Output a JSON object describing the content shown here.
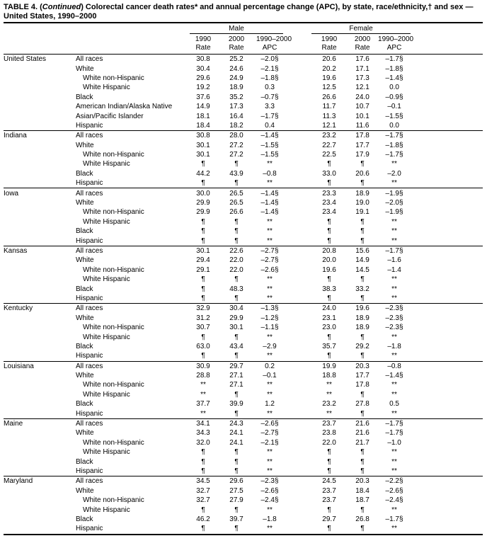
{
  "header": {
    "title": [
      "TABLE 4. (",
      "Continued",
      ") Colorectal cancer death rates* and annual percentage change (APC), by state, race/ethnicity,† and sex — United States, 1990–2000"
    ]
  },
  "table": {
    "sexes": [
      "Male",
      "Female"
    ],
    "columns": [
      [
        "1990",
        "Rate"
      ],
      [
        "2000",
        "Rate"
      ],
      [
        "1990–2000",
        "APC"
      ],
      [
        "1990",
        "Rate"
      ],
      [
        "2000",
        "Rate"
      ],
      [
        "1990–2000",
        "APC"
      ]
    ],
    "groups": [
      {
        "state": "United States",
        "rows": [
          [
            "All races",
            "30.8",
            "25.2",
            "–2.0§",
            "20.6",
            "17.6",
            "–1.7§"
          ],
          [
            "White",
            "30.4",
            "24.6",
            "–2.1§",
            "20.2",
            "17.1",
            "–1.8§"
          ],
          [
            "White non-Hispanic",
            "29.6",
            "24.9",
            "–1.8§",
            "19.6",
            "17.3",
            "–1.4§"
          ],
          [
            "White Hispanic",
            "19.2",
            "18.9",
            "0.3",
            "12.5",
            "12.1",
            "0.0"
          ],
          [
            "Black",
            "37.6",
            "35.2",
            "–0.7§",
            "26.6",
            "24.0",
            "–0.9§"
          ],
          [
            "American Indian/Alaska Native",
            "14.9",
            "17.3",
            "3.3",
            "11.7",
            "10.7",
            "–0.1"
          ],
          [
            "Asian/Pacific Islander",
            "18.1",
            "16.4",
            "–1.7§",
            "11.3",
            "10.1",
            "–1.5§"
          ],
          [
            "Hispanic",
            "18.4",
            "18.2",
            "0.4",
            "12.1",
            "11.6",
            "0.0"
          ]
        ]
      },
      {
        "state": "Indiana",
        "rows": [
          [
            "All races",
            "30.8",
            "28.0",
            "–1.4§",
            "23.2",
            "17.8",
            "–1.7§"
          ],
          [
            "White",
            "30.1",
            "27.2",
            "–1.5§",
            "22.7",
            "17.7",
            "–1.8§"
          ],
          [
            "White non-Hispanic",
            "30.1",
            "27.2",
            "–1.5§",
            "22.5",
            "17.9",
            "–1.7§"
          ],
          [
            "White Hispanic",
            "¶",
            "¶",
            "**",
            "¶",
            "¶",
            "**"
          ],
          [
            "Black",
            "44.2",
            "43.9",
            "–0.8",
            "33.0",
            "20.6",
            "–2.0"
          ],
          [
            "Hispanic",
            "¶",
            "¶",
            "**",
            "¶",
            "¶",
            "**"
          ]
        ]
      },
      {
        "state": "Iowa",
        "rows": [
          [
            "All races",
            "30.0",
            "26.5",
            "–1.4§",
            "23.3",
            "18.9",
            "–1.9§"
          ],
          [
            "White",
            "29.9",
            "26.5",
            "–1.4§",
            "23.4",
            "19.0",
            "–2.0§"
          ],
          [
            "White non-Hispanic",
            "29.9",
            "26.6",
            "–1.4§",
            "23.4",
            "19.1",
            "–1.9§"
          ],
          [
            "White Hispanic",
            "¶",
            "¶",
            "**",
            "¶",
            "¶",
            "**"
          ],
          [
            "Black",
            "¶",
            "¶",
            "**",
            "¶",
            "¶",
            "**"
          ],
          [
            "Hispanic",
            "¶",
            "¶",
            "**",
            "¶",
            "¶",
            "**"
          ]
        ]
      },
      {
        "state": "Kansas",
        "rows": [
          [
            "All races",
            "30.1",
            "22.6",
            "–2.7§",
            "20.8",
            "15.6",
            "–1.7§"
          ],
          [
            "White",
            "29.4",
            "22.0",
            "–2.7§",
            "20.0",
            "14.9",
            "–1.6"
          ],
          [
            "White non-Hispanic",
            "29.1",
            "22.0",
            "–2.6§",
            "19.6",
            "14.5",
            "–1.4"
          ],
          [
            "White Hispanic",
            "¶",
            "¶",
            "**",
            "¶",
            "¶",
            "**"
          ],
          [
            "Black",
            "¶",
            "48.3",
            "**",
            "38.3",
            "33.2",
            "**"
          ],
          [
            "Hispanic",
            "¶",
            "¶",
            "**",
            "¶",
            "¶",
            "**"
          ]
        ]
      },
      {
        "state": "Kentucky",
        "rows": [
          [
            "All races",
            "32.9",
            "30.4",
            "–1.3§",
            "24.0",
            "19.6",
            "–2.3§"
          ],
          [
            "White",
            "31.2",
            "29.9",
            "–1.2§",
            "23.1",
            "18.9",
            "–2.3§"
          ],
          [
            "White non-Hispanic",
            "30.7",
            "30.1",
            "–1.1§",
            "23.0",
            "18.9",
            "–2.3§"
          ],
          [
            "White Hispanic",
            "¶",
            "¶",
            "**",
            "¶",
            "¶",
            "**"
          ],
          [
            "Black",
            "63.0",
            "43.4",
            "–2.9",
            "35.7",
            "29.2",
            "–1.8"
          ],
          [
            "Hispanic",
            "¶",
            "¶",
            "**",
            "¶",
            "¶",
            "**"
          ]
        ]
      },
      {
        "state": "Louisiana",
        "rows": [
          [
            "All races",
            "30.9",
            "29.7",
            "0.2",
            "19.9",
            "20.3",
            "–0.8"
          ],
          [
            "White",
            "28.8",
            "27.1",
            "–0.1",
            "18.8",
            "17.7",
            "–1.4§"
          ],
          [
            "White non-Hispanic",
            "**",
            "27.1",
            "**",
            "**",
            "17.8",
            "**"
          ],
          [
            "White Hispanic",
            "**",
            "¶",
            "**",
            "**",
            "¶",
            "**"
          ],
          [
            "Black",
            "37.7",
            "39.9",
            "1.2",
            "23.2",
            "27.8",
            "0.5"
          ],
          [
            "Hispanic",
            "**",
            "¶",
            "**",
            "**",
            "¶",
            "**"
          ]
        ]
      },
      {
        "state": "Maine",
        "rows": [
          [
            "All races",
            "34.1",
            "24.3",
            "–2.6§",
            "23.7",
            "21.6",
            "–1.7§"
          ],
          [
            "White",
            "34.3",
            "24.1",
            "–2.7§",
            "23.8",
            "21.6",
            "–1.7§"
          ],
          [
            "White non-Hispanic",
            "32.0",
            "24.1",
            "–2.1§",
            "22.0",
            "21.7",
            "–1.0"
          ],
          [
            "White Hispanic",
            "¶",
            "¶",
            "**",
            "¶",
            "¶",
            "**"
          ],
          [
            "Black",
            "¶",
            "¶",
            "**",
            "¶",
            "¶",
            "**"
          ],
          [
            "Hispanic",
            "¶",
            "¶",
            "**",
            "¶",
            "¶",
            "**"
          ]
        ]
      },
      {
        "state": "Maryland",
        "rows": [
          [
            "All races",
            "34.5",
            "29.6",
            "–2.3§",
            "24.5",
            "20.3",
            "–2.2§"
          ],
          [
            "White",
            "32.7",
            "27.5",
            "–2.6§",
            "23.7",
            "18.4",
            "–2.6§"
          ],
          [
            "White non-Hispanic",
            "32.7",
            "27.9",
            "–2.4§",
            "23.7",
            "18.7",
            "–2.4§"
          ],
          [
            "White Hispanic",
            "¶",
            "¶",
            "**",
            "¶",
            "¶",
            "**"
          ],
          [
            "Black",
            "46.2",
            "39.7",
            "–1.8",
            "29.7",
            "26.8",
            "–1.7§"
          ],
          [
            "Hispanic",
            "¶",
            "¶",
            "**",
            "¶",
            "¶",
            "**"
          ]
        ]
      }
    ]
  }
}
